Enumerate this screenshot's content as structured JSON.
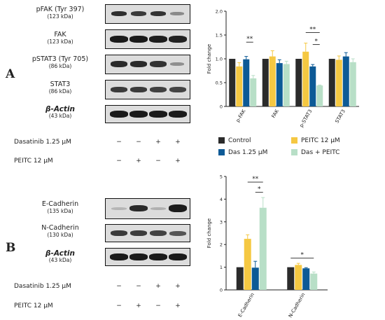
{
  "panel_labels": {
    "a": "A",
    "b": "B"
  },
  "panel_a": {
    "proteins": [
      {
        "name": "pFAK (Tyr 397)",
        "kda": "(123 kDa)"
      },
      {
        "name": "FAK",
        "kda": "(123 kDa)"
      },
      {
        "name": "pSTAT3 (Tyr 705)",
        "kda": "(86 kDa)"
      },
      {
        "name": "STAT3",
        "kda": "(86 kDa)"
      },
      {
        "name": "β-Actin",
        "kda": "(43 kDa)"
      }
    ],
    "treatments": [
      {
        "label": "Dasatinib 1.25 µM",
        "signs": [
          "−",
          "−",
          "+",
          "+"
        ]
      },
      {
        "label": "PEITC 12 µM",
        "signs": [
          "−",
          "+",
          "−",
          "+"
        ]
      }
    ]
  },
  "panel_b": {
    "proteins": [
      {
        "name": "E-Cadherin",
        "kda": "(135 kDa)"
      },
      {
        "name": "N-Cadherin",
        "kda": "(130 kDa)"
      },
      {
        "name": "β-Actin",
        "kda": "(43 kDa)"
      }
    ],
    "treatments": [
      {
        "label": "Dasatinib 1.25 µM",
        "signs": [
          "−",
          "−",
          "+",
          "+"
        ]
      },
      {
        "label": "PEITC 12 µM",
        "signs": [
          "−",
          "+",
          "−",
          "+"
        ]
      }
    ]
  },
  "legend": {
    "items": [
      {
        "label": "Control",
        "color": "#2b2b2b"
      },
      {
        "label": "PEITC 12 µM",
        "color": "#f5c842"
      },
      {
        "label": "Das 1.25 µM",
        "color": "#0d5a96"
      },
      {
        "label": "Das + PEITC",
        "color": "#b8dfc7"
      }
    ]
  },
  "chart_data": [
    {
      "type": "bar",
      "title": "",
      "xlabel": "",
      "ylabel": "Fold change",
      "ylim": [
        0,
        2
      ],
      "yticks": [
        "0",
        "0.5",
        "1.0",
        "1.5",
        "2.0"
      ],
      "categories": [
        "p-FAK",
        "FAK",
        "p-STAT3",
        "STAT3"
      ],
      "series": [
        {
          "name": "Control",
          "color": "#2b2b2b",
          "values": [
            1.0,
            1.0,
            1.0,
            1.0
          ],
          "errors": [
            0,
            0,
            0,
            0
          ]
        },
        {
          "name": "PEITC 12 µM",
          "color": "#f5c842",
          "values": [
            0.84,
            1.05,
            1.15,
            0.98
          ],
          "errors": [
            0.08,
            0.12,
            0.18,
            0.08
          ]
        },
        {
          "name": "Das 1.25 µM",
          "color": "#0d5a96",
          "values": [
            0.99,
            0.91,
            0.84,
            1.05
          ],
          "errors": [
            0.06,
            0.07,
            0.04,
            0.08
          ]
        },
        {
          "name": "Das + PEITC",
          "color": "#b8dfc7",
          "values": [
            0.59,
            0.89,
            0.44,
            0.93
          ],
          "errors": [
            0.06,
            0.06,
            0.01,
            0.07
          ]
        }
      ],
      "significance": [
        {
          "category": 0,
          "from": 2,
          "to": 3,
          "label": "**",
          "y": 1.35
        },
        {
          "category": 2,
          "from": 2,
          "to": 3,
          "label": "*",
          "y": 1.3
        },
        {
          "category": 2,
          "from": 1,
          "to": 3,
          "label": "**",
          "y": 1.55
        }
      ]
    },
    {
      "type": "bar",
      "title": "",
      "xlabel": "",
      "ylabel": "Fold change",
      "ylim": [
        0,
        5
      ],
      "yticks": [
        "0",
        "1",
        "2",
        "3",
        "4",
        "5"
      ],
      "categories": [
        "E-Cadherin",
        "N-Cadherin"
      ],
      "series": [
        {
          "name": "Control",
          "color": "#2b2b2b",
          "values": [
            1.0,
            1.0
          ],
          "errors": [
            0,
            0
          ]
        },
        {
          "name": "PEITC 12 µM",
          "color": "#f5c842",
          "values": [
            2.25,
            1.1
          ],
          "errors": [
            0.18,
            0.07
          ]
        },
        {
          "name": "Das 1.25 µM",
          "color": "#0d5a96",
          "values": [
            0.98,
            0.95
          ],
          "errors": [
            0.28,
            0.03
          ]
        },
        {
          "name": "Das + PEITC",
          "color": "#b8dfc7",
          "values": [
            3.62,
            0.72
          ],
          "errors": [
            0.45,
            0.07
          ]
        }
      ],
      "significance": [
        {
          "category": 0,
          "from": 2,
          "to": 3,
          "label": "*",
          "y": 4.3
        },
        {
          "category": 0,
          "from": 1,
          "to": 3,
          "label": "**",
          "y": 4.75
        },
        {
          "category": 1,
          "from": 0,
          "to": 3,
          "label": "*",
          "y": 1.4
        }
      ]
    }
  ]
}
